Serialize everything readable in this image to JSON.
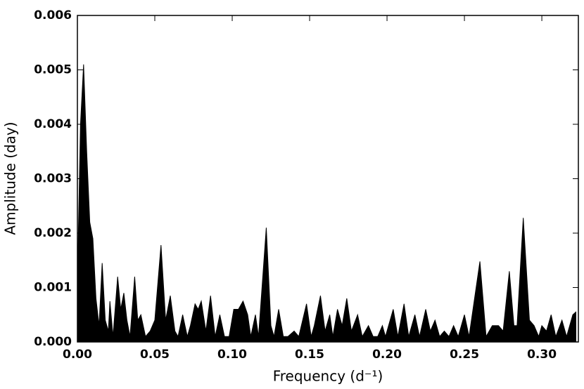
{
  "chart_data": {
    "type": "area",
    "color": "#000000",
    "xlabel": "Frequency (d⁻¹)",
    "ylabel": "Amplitude (day)",
    "xlim": [
      0,
      0.3236
    ],
    "ylim": [
      0,
      0.006
    ],
    "xticks": [
      {
        "value": 0,
        "label": "0.00"
      },
      {
        "value": 0.05,
        "label": "0.05"
      },
      {
        "value": 0.1,
        "label": "0.10"
      },
      {
        "value": 0.15,
        "label": "0.15"
      },
      {
        "value": 0.2,
        "label": "0.20"
      },
      {
        "value": 0.25,
        "label": "0.25"
      },
      {
        "value": 0.3,
        "label": "0.30"
      }
    ],
    "yticks": [
      {
        "value": 0,
        "label": "0.000"
      },
      {
        "value": 0.001,
        "label": "0.001"
      },
      {
        "value": 0.002,
        "label": "0.002"
      },
      {
        "value": 0.003,
        "label": "0.003"
      },
      {
        "value": 0.004,
        "label": "0.004"
      },
      {
        "value": 0.005,
        "label": "0.005"
      },
      {
        "value": 0.006,
        "label": "0.006"
      }
    ],
    "x": [
      0,
      0.002,
      0.004,
      0.006,
      0.008,
      0.01,
      0.012,
      0.014,
      0.016,
      0.018,
      0.02,
      0.021,
      0.023,
      0.026,
      0.028,
      0.03,
      0.032,
      0.034,
      0.037,
      0.039,
      0.041,
      0.044,
      0.047,
      0.05,
      0.054,
      0.057,
      0.06,
      0.063,
      0.065,
      0.068,
      0.071,
      0.073,
      0.076,
      0.078,
      0.08,
      0.083,
      0.086,
      0.089,
      0.092,
      0.095,
      0.098,
      0.101,
      0.104,
      0.107,
      0.11,
      0.112,
      0.115,
      0.117,
      0.122,
      0.125,
      0.127,
      0.13,
      0.133,
      0.136,
      0.14,
      0.143,
      0.148,
      0.151,
      0.153,
      0.157,
      0.16,
      0.163,
      0.165,
      0.168,
      0.171,
      0.174,
      0.177,
      0.181,
      0.184,
      0.188,
      0.191,
      0.194,
      0.197,
      0.199,
      0.204,
      0.207,
      0.211,
      0.214,
      0.218,
      0.221,
      0.225,
      0.228,
      0.231,
      0.234,
      0.237,
      0.24,
      0.243,
      0.246,
      0.25,
      0.253,
      0.26,
      0.264,
      0.268,
      0.272,
      0.275,
      0.279,
      0.282,
      0.284,
      0.288,
      0.292,
      0.295,
      0.298,
      0.3,
      0.303,
      0.306,
      0.309,
      0.313,
      0.316,
      0.32,
      0.322
    ],
    "values": [
      0.0011,
      0.004,
      0.0051,
      0.0035,
      0.0022,
      0.0019,
      0.0008,
      0.0003,
      0.00145,
      0.0004,
      0.0002,
      0.00075,
      0.0001,
      0.0012,
      0.0006,
      0.0009,
      0.0004,
      0.0001,
      0.0012,
      0.0004,
      0.0005,
      0.0001,
      0.0002,
      0.0004,
      0.00178,
      0.0004,
      0.00085,
      0.0002,
      0.0001,
      0.0005,
      0.0001,
      0.0003,
      0.0007,
      0.0006,
      0.00075,
      0.0002,
      0.00085,
      0.0001,
      0.0005,
      0.0001,
      0.0001,
      0.0006,
      0.0006,
      0.00075,
      0.0005,
      0.0001,
      0.0005,
      0.0001,
      0.0021,
      0.0003,
      0.0001,
      0.0006,
      0.0001,
      0.0001,
      0.0002,
      0.0001,
      0.0007,
      0.0001,
      0.0003,
      0.00085,
      0.0002,
      0.0005,
      0.0001,
      0.0006,
      0.0003,
      0.0008,
      0.0002,
      0.0005,
      0.0001,
      0.0003,
      0.0001,
      0.0001,
      0.0003,
      0.0001,
      0.0006,
      0.0001,
      0.0007,
      0.0001,
      0.0005,
      0.0001,
      0.0006,
      0.0002,
      0.0004,
      0.0001,
      0.0002,
      0.0001,
      0.0003,
      0.0001,
      0.0005,
      0.0001,
      0.00148,
      0.0001,
      0.0003,
      0.0003,
      0.0002,
      0.0013,
      0.0003,
      0.0003,
      0.00228,
      0.0004,
      0.0003,
      0.0001,
      0.0003,
      0.0002,
      0.0005,
      0.0001,
      0.0004,
      0.0001,
      0.0005,
      0.00055
    ]
  }
}
